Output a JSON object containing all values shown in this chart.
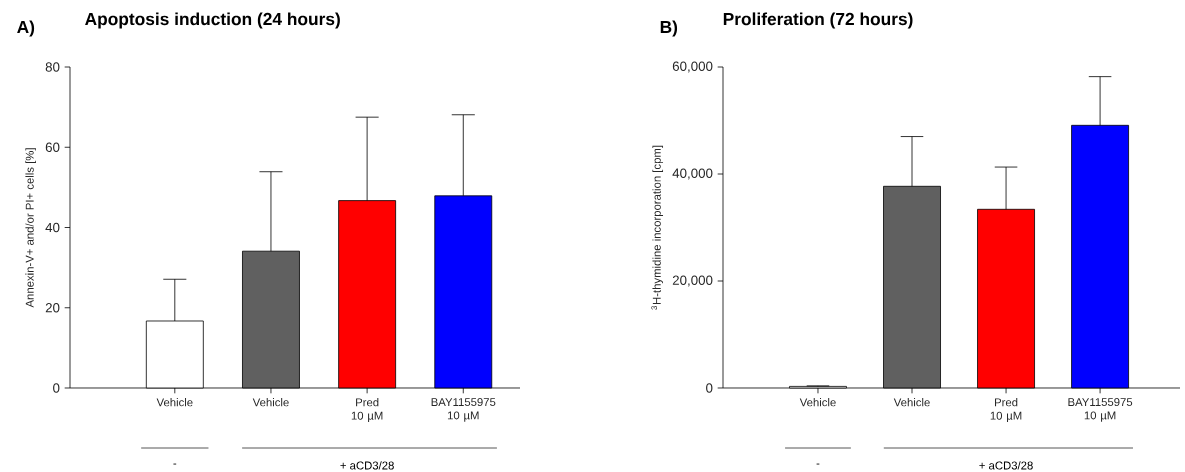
{
  "chart_data": [
    {
      "type": "bar",
      "title": "Apoptosis induction (24 hours)",
      "ylabel": "Annexin-V+ and/or PI+ cells [%]",
      "categories": [
        "Vehicle",
        "Vehicle",
        "Pred\n10 µM",
        "BAY1155975\n10 µM"
      ],
      "values": [
        16.7,
        34.1,
        46.7,
        47.9
      ],
      "errors": [
        [
          16.7,
          27.1
        ],
        [
          34.1,
          53.9
        ],
        [
          46.7,
          67.5
        ],
        [
          47.9,
          68.1
        ]
      ],
      "colors": [
        "#ffffff",
        "#606060",
        "#ff0000",
        "#0000ff"
      ],
      "ylim": [
        0,
        80
      ],
      "yticks": [
        0,
        20,
        40,
        60,
        80
      ],
      "annotations": [
        "A)",
        "-",
        "+ aCD3/28"
      ]
    },
    {
      "type": "bar",
      "title": "Proliferation (72 hours)",
      "ylabel": "$^{3}$H-thymidine incorporation [cpm]",
      "categories": [
        "Vehicle",
        "Vehicle",
        "Pred\n10 µM",
        "BAY1155975\n10 µM"
      ],
      "values": [
        300,
        37700,
        33400,
        49100
      ],
      "errors": [
        [
          300,
          400
        ],
        [
          37700,
          47000
        ],
        [
          33400,
          41300
        ],
        [
          49100,
          58200
        ]
      ],
      "colors": [
        "#ffffff",
        "#606060",
        "#ff0000",
        "#0000ff"
      ],
      "ylim": [
        0,
        60000
      ],
      "yticks": [
        0,
        {
          "value": 20000,
          "label": "20,000"
        },
        {
          "value": 40000,
          "label": "40,000"
        },
        {
          "value": 60000,
          "label": "60,000"
        }
      ],
      "annotations": [
        "B)",
        "-",
        "+ aCD3/28"
      ]
    }
  ]
}
